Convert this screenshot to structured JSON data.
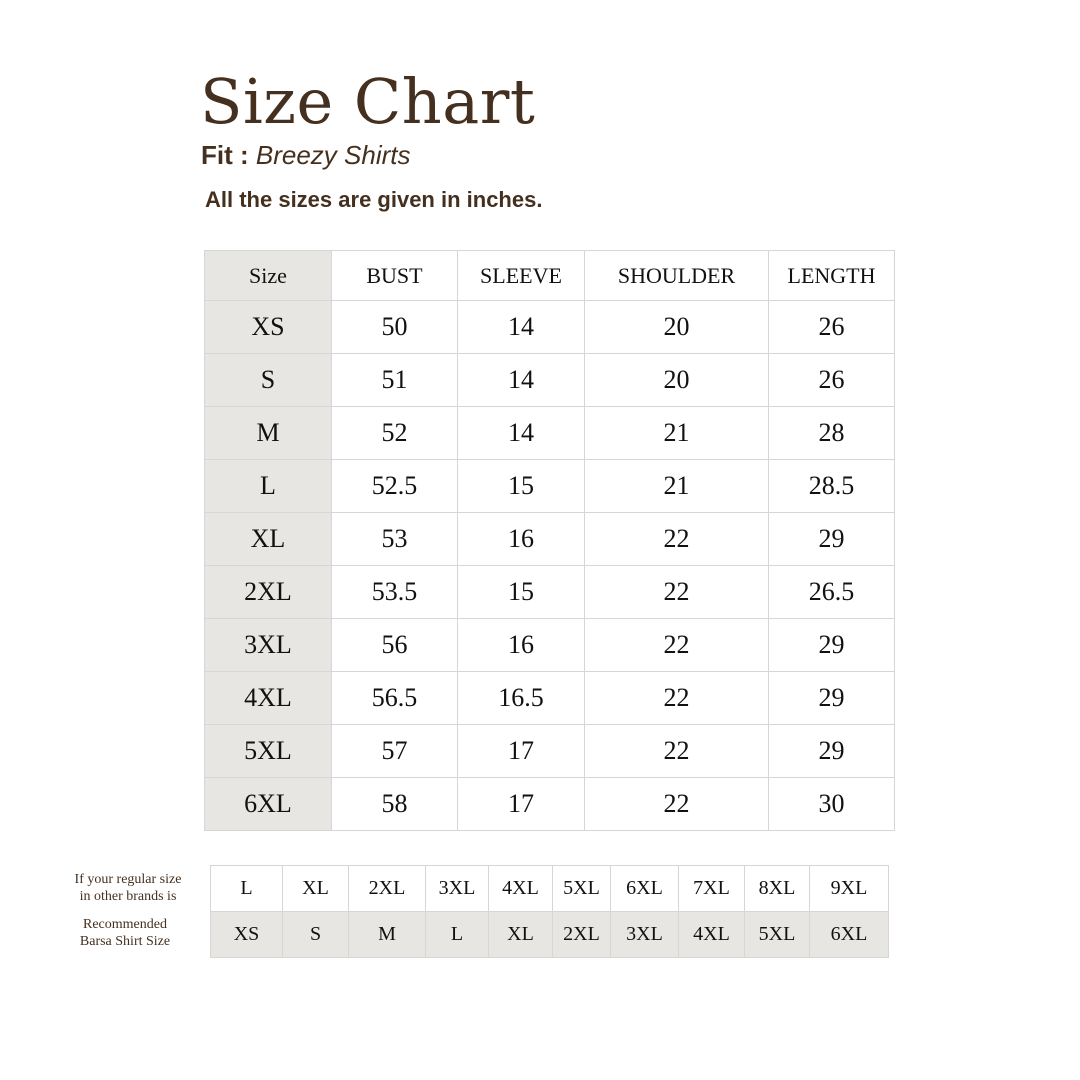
{
  "title": "Size Chart",
  "fit_label": "Fit :",
  "fit_value": "Breezy Shirts",
  "note": "All the sizes are given in inches.",
  "size_table": {
    "headers": [
      "Size",
      "BUST",
      "SLEEVE",
      "SHOULDER",
      "LENGTH"
    ],
    "rows": [
      [
        "XS",
        "50",
        "14",
        "20",
        "26"
      ],
      [
        "S",
        "51",
        "14",
        "20",
        "26"
      ],
      [
        "M",
        "52",
        "14",
        "21",
        "28"
      ],
      [
        "L",
        "52.5",
        "15",
        "21",
        "28.5"
      ],
      [
        "XL",
        "53",
        "16",
        "22",
        "29"
      ],
      [
        "2XL",
        "53.5",
        "15",
        "22",
        "26.5"
      ],
      [
        "3XL",
        "56",
        "16",
        "22",
        "29"
      ],
      [
        "4XL",
        "56.5",
        "16.5",
        "22",
        "29"
      ],
      [
        "5XL",
        "57",
        "17",
        "22",
        "29"
      ],
      [
        "6XL",
        "58",
        "17",
        "22",
        "30"
      ]
    ]
  },
  "conversion": {
    "regular_label_1": "If your regular size",
    "regular_label_2": "in other brands is",
    "recommended_label_1": "Recommended",
    "recommended_label_2": "Barsa Shirt Size",
    "regular": [
      "L",
      "XL",
      "2XL",
      "3XL",
      "4XL",
      "5XL",
      "6XL",
      "7XL",
      "8XL",
      "9XL"
    ],
    "recommended": [
      "XS",
      "S",
      "M",
      "L",
      "XL",
      "2XL",
      "3XL",
      "4XL",
      "5XL",
      "6XL"
    ]
  },
  "colors": {
    "text_brown": "#45301f",
    "size_col_bg": "#e8e6e3",
    "border": "#d6d6d6"
  }
}
